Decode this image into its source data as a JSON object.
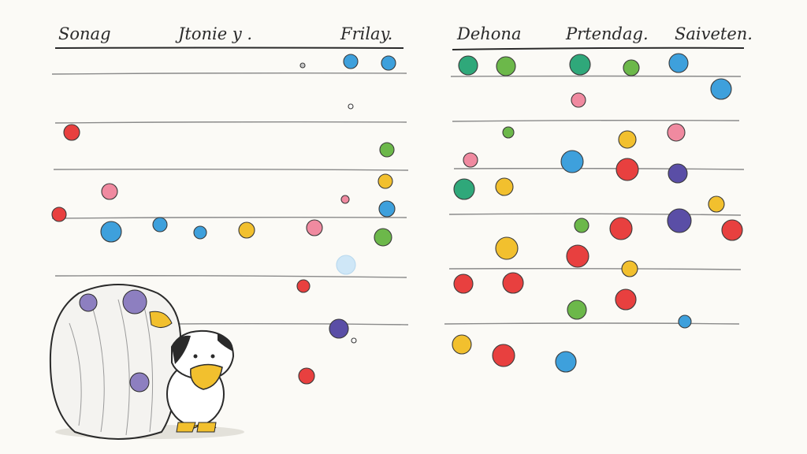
{
  "illustration": {
    "style": "hand-drawn pencil and watercolor sketch",
    "left_panel": {
      "headers": [
        "Sonag",
        "Jtonie y .",
        "Frilay."
      ]
    },
    "right_panel": {
      "headers": [
        "Dehona",
        "Prtendag.",
        "Saiveten."
      ]
    },
    "colors": {
      "paper": "#fbfaf6",
      "ink": "#2a2a2a",
      "line": "#8a8a8a",
      "red": "#e8403f",
      "pink": "#f08aa0",
      "blue": "#3ea0dc",
      "lightblue": "#9fd0f0",
      "green": "#6cb84a",
      "teal": "#2fa87a",
      "yellow": "#f2c02e",
      "purple": "#5a4ea6",
      "violet": "#8d7fc0"
    }
  }
}
